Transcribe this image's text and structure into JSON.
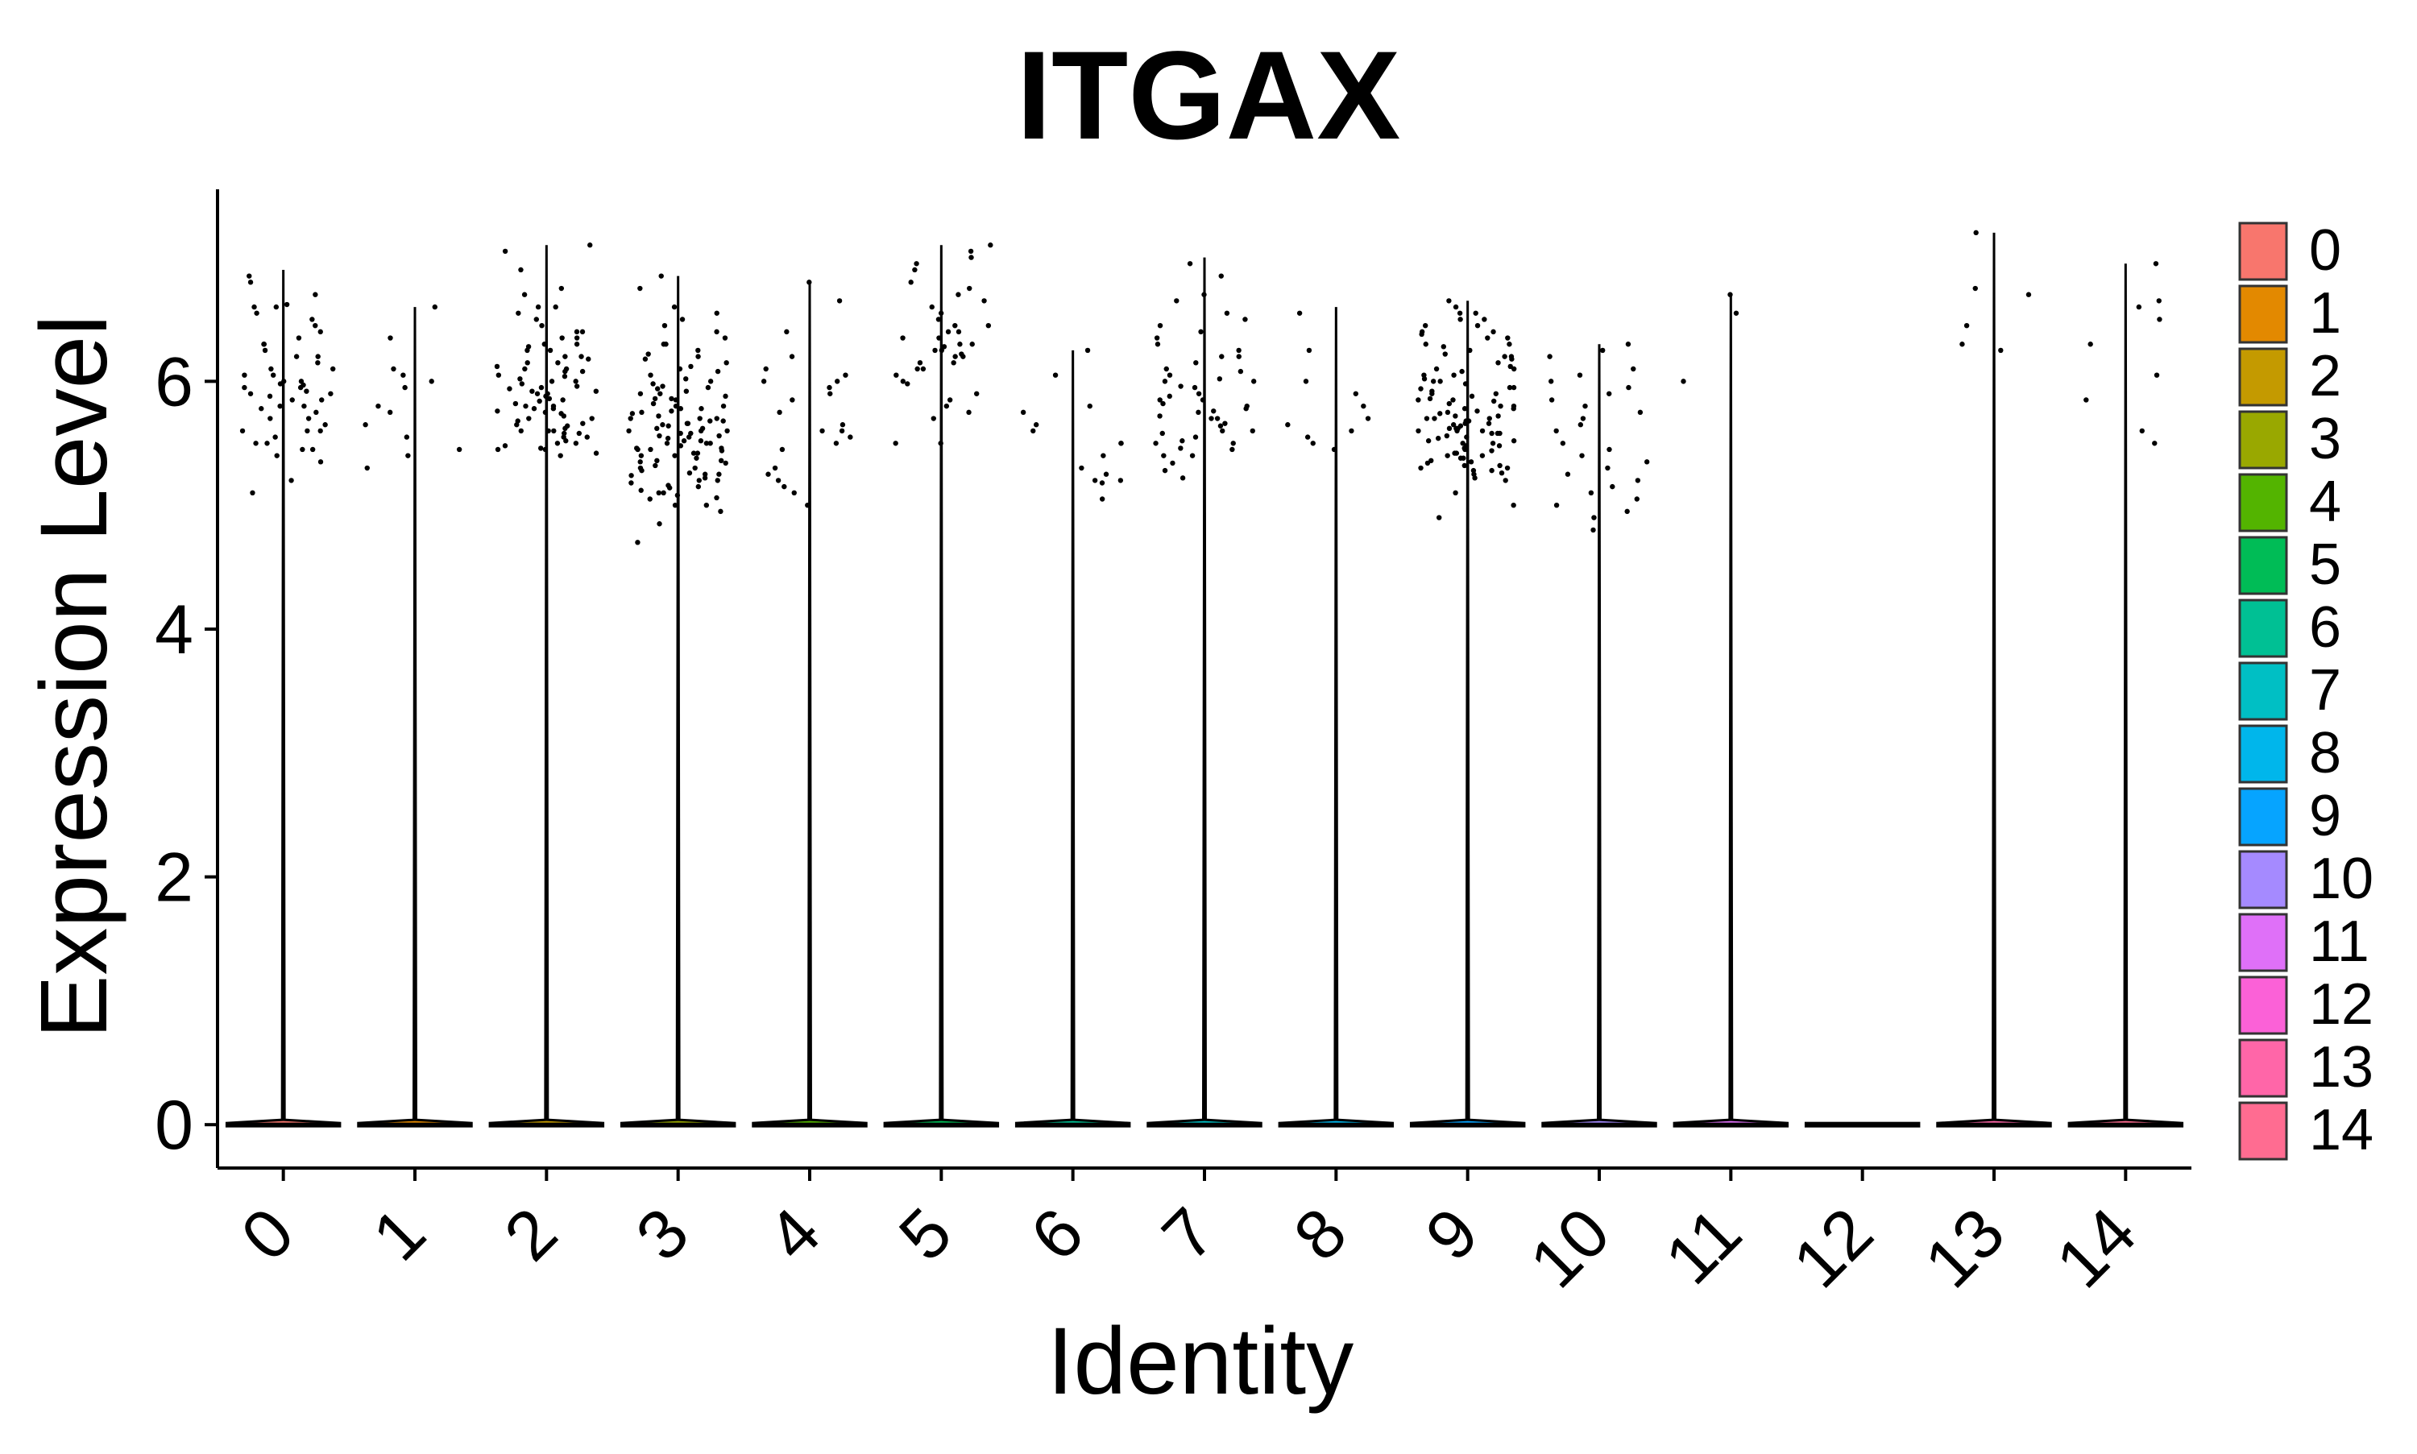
{
  "chart_data": {
    "type": "violin",
    "title": "ITGAX",
    "xlabel": "Identity",
    "ylabel": "Expression Level",
    "categories": [
      "0",
      "1",
      "2",
      "3",
      "4",
      "5",
      "6",
      "7",
      "8",
      "9",
      "10",
      "11",
      "12",
      "13",
      "14"
    ],
    "ylim": [
      -0.35,
      7.55
    ],
    "yticks": [
      0,
      2,
      4,
      6
    ],
    "max_expression": [
      6.9,
      6.6,
      7.1,
      6.85,
      6.8,
      7.1,
      6.25,
      7.0,
      6.6,
      6.65,
      6.3,
      6.7,
      0,
      7.2,
      6.95
    ],
    "expressing_cells": [
      {
        "category": "0",
        "values": [
          6.35,
          6.3,
          6.2,
          6.1,
          6.0,
          5.95,
          5.9,
          5.85,
          5.8,
          5.75,
          5.6,
          5.5,
          5.45,
          5.1,
          5.2,
          6.55,
          6.6,
          6.5,
          6.4,
          6.15,
          6.05,
          5.98,
          5.92,
          5.88,
          5.78,
          5.7,
          5.65,
          5.6,
          5.55,
          6.6,
          6.7,
          6.8,
          6.85,
          6.25,
          6.1,
          6.0,
          5.9,
          5.8,
          5.7,
          5.5,
          5.4,
          5.35,
          6.45,
          6.3,
          6.62,
          6.2,
          5.97,
          5.95,
          5.85,
          5.6,
          5.45,
          6.05
        ]
      },
      {
        "category": "1",
        "values": [
          6.6,
          6.35,
          6.05,
          5.95,
          5.55,
          5.45,
          5.4,
          5.3,
          5.75,
          5.8,
          6.0,
          5.65,
          6.1
        ]
      },
      {
        "category": "2",
        "values": [
          6.7,
          6.6,
          6.55,
          6.4,
          6.3,
          6.25,
          6.2,
          6.15,
          6.1,
          6.05,
          6.0,
          5.95,
          5.9,
          5.85,
          5.8,
          5.75,
          5.7,
          5.65,
          5.6,
          5.55,
          5.5,
          5.45,
          5.4,
          6.75,
          6.5,
          6.35,
          6.2,
          6.1,
          6.0,
          5.92,
          5.88,
          5.82,
          5.78,
          5.72,
          5.66,
          5.6,
          5.52,
          5.48,
          7.1,
          7.05,
          6.9,
          6.45,
          6.3,
          6.15,
          6.08,
          6.02,
          5.96,
          5.9,
          5.84,
          5.76,
          5.7,
          5.64,
          5.58,
          5.5,
          5.42,
          6.6,
          6.4,
          6.25,
          6.12,
          5.98,
          5.86,
          5.74,
          5.62,
          5.55,
          5.45,
          6.35,
          6.18,
          6.04,
          5.94,
          5.8,
          5.68,
          5.58,
          5.46,
          6.28,
          6.08,
          5.92,
          5.78,
          5.6
        ]
      },
      {
        "category": "3",
        "values": [
          6.85,
          6.75,
          6.5,
          6.35,
          6.2,
          6.1,
          6.0,
          5.95,
          5.9,
          5.85,
          5.8,
          5.75,
          5.7,
          5.65,
          5.6,
          5.55,
          5.5,
          5.45,
          5.4,
          5.35,
          5.3,
          5.25,
          5.2,
          5.15,
          5.1,
          5.05,
          5.0,
          4.95,
          4.85,
          4.7,
          6.4,
          6.3,
          6.15,
          6.05,
          5.98,
          5.92,
          5.88,
          5.82,
          5.78,
          5.72,
          5.68,
          5.62,
          5.58,
          5.52,
          5.48,
          5.42,
          5.38,
          5.32,
          5.28,
          5.22,
          5.18,
          5.12,
          5.08,
          6.6,
          6.45,
          6.25,
          6.12,
          6.02,
          5.96,
          5.86,
          5.76,
          5.66,
          5.56,
          5.46,
          5.36,
          5.26,
          5.16,
          5.06,
          5.86,
          5.74,
          5.64,
          5.54,
          5.44,
          5.34,
          5.24,
          5.14,
          6.3,
          6.18,
          6.08,
          5.94,
          5.8,
          5.7,
          5.6,
          5.5,
          5.4,
          5.3,
          5.2,
          5.1,
          5.0,
          5.66,
          5.58,
          5.52,
          5.46,
          5.56,
          5.62,
          5.7,
          5.42,
          5.36,
          5.5,
          5.6,
          5.68,
          5.78,
          6.55,
          6.22,
          5.9,
          5.45,
          5.25
        ]
      },
      {
        "category": "4",
        "values": [
          6.65,
          6.4,
          6.2,
          6.05,
          6.0,
          5.95,
          5.9,
          5.75,
          5.65,
          5.6,
          5.5,
          5.45,
          5.3,
          5.25,
          5.15,
          5.1,
          5.0,
          6.8,
          6.1,
          5.85,
          5.6,
          5.55,
          5.2,
          6.0
        ]
      },
      {
        "category": "5",
        "values": [
          6.95,
          6.75,
          6.55,
          6.45,
          6.4,
          6.35,
          6.3,
          6.25,
          6.2,
          6.15,
          6.1,
          6.0,
          5.85,
          5.8,
          5.75,
          5.7,
          5.5,
          7.1,
          7.05,
          7.0,
          6.9,
          6.8,
          6.7,
          6.65,
          6.6,
          6.5,
          6.45,
          6.4,
          6.35,
          6.3,
          6.28,
          6.25,
          6.22,
          6.2,
          6.15,
          6.1,
          6.05,
          5.98,
          5.9,
          5.5
        ]
      },
      {
        "category": "6",
        "values": [
          6.05,
          5.75,
          5.6,
          5.5,
          5.4,
          5.3,
          5.2,
          5.18,
          5.2,
          5.25,
          5.5,
          6.25,
          5.8,
          5.65,
          5.05
        ]
      },
      {
        "category": "7",
        "values": [
          6.95,
          6.85,
          6.7,
          6.5,
          6.4,
          6.3,
          6.2,
          6.1,
          6.05,
          6.0,
          5.95,
          5.9,
          5.85,
          5.8,
          5.75,
          5.7,
          5.6,
          5.5,
          5.45,
          5.4,
          6.65,
          6.55,
          6.45,
          6.35,
          6.25,
          6.15,
          6.08,
          6.02,
          5.96,
          5.88,
          5.82,
          5.76,
          5.7,
          5.64,
          5.58,
          5.52,
          5.46,
          5.4,
          5.34,
          5.28,
          5.22,
          6.2,
          6.0,
          5.85,
          5.78,
          5.72,
          5.66,
          5.6,
          5.55,
          5.5
        ]
      },
      {
        "category": "8",
        "values": [
          6.55,
          6.0,
          5.9,
          5.7,
          5.6,
          5.55,
          5.45,
          6.25,
          5.8,
          5.65,
          5.5
        ]
      },
      {
        "category": "9",
        "values": [
          6.65,
          6.6,
          6.55,
          6.5,
          6.45,
          6.4,
          6.35,
          6.3,
          6.25,
          6.2,
          6.15,
          6.1,
          6.05,
          6.0,
          5.95,
          5.9,
          5.85,
          5.8,
          5.75,
          5.7,
          5.65,
          5.6,
          5.55,
          5.5,
          5.45,
          5.4,
          5.35,
          5.3,
          5.25,
          5.2,
          6.4,
          6.2,
          6.05,
          5.98,
          5.92,
          5.88,
          5.82,
          5.78,
          5.72,
          5.68,
          5.62,
          5.58,
          5.52,
          5.48,
          5.42,
          5.38,
          5.32,
          5.28,
          6.3,
          6.1,
          5.95,
          5.86,
          5.76,
          5.66,
          5.56,
          5.46,
          5.36,
          5.26,
          6.22,
          6.02,
          5.9,
          5.8,
          5.7,
          5.6,
          5.5,
          5.4,
          5.3,
          4.9,
          5.0,
          5.1,
          5.74,
          5.64,
          5.54,
          5.6,
          5.7,
          5.66,
          5.58,
          6.5,
          6.35,
          6.12,
          5.84,
          5.62,
          5.44,
          5.34,
          6.45,
          6.28,
          6.08,
          5.94,
          5.78,
          5.68,
          5.58,
          5.48,
          5.38,
          5.28,
          6.55,
          6.38,
          6.18,
          6.0,
          5.85,
          5.72,
          5.62,
          5.52,
          5.42,
          5.32,
          5.22
        ]
      },
      {
        "category": "10",
        "values": [
          6.3,
          6.25,
          6.2,
          6.1,
          6.0,
          5.9,
          5.85,
          5.8,
          5.7,
          5.6,
          5.5,
          5.4,
          5.35,
          5.3,
          5.2,
          5.1,
          5.05,
          5.0,
          4.95,
          4.9,
          4.8,
          6.05,
          5.95,
          5.75,
          5.65,
          5.45,
          5.25,
          5.15
        ]
      },
      {
        "category": "11",
        "values": [
          6.7,
          6.55,
          6.0
        ]
      },
      {
        "category": "12",
        "values": []
      },
      {
        "category": "13",
        "values": [
          7.2,
          6.75,
          6.7,
          6.45,
          6.3,
          6.25
        ]
      },
      {
        "category": "14",
        "values": [
          6.95,
          6.65,
          6.6,
          6.5,
          6.3,
          6.05,
          5.85,
          5.6,
          5.5
        ]
      }
    ],
    "legend": {
      "position": "right",
      "items": [
        {
          "label": "0",
          "color": "#F8766D"
        },
        {
          "label": "1",
          "color": "#E38900"
        },
        {
          "label": "2",
          "color": "#C49A00"
        },
        {
          "label": "3",
          "color": "#99A800"
        },
        {
          "label": "4",
          "color": "#53B400"
        },
        {
          "label": "5",
          "color": "#00BC56"
        },
        {
          "label": "6",
          "color": "#00C094"
        },
        {
          "label": "7",
          "color": "#00BFC4"
        },
        {
          "label": "8",
          "color": "#00B6EB"
        },
        {
          "label": "9",
          "color": "#06A4FF"
        },
        {
          "label": "10",
          "color": "#A58AFF"
        },
        {
          "label": "11",
          "color": "#DF70F8"
        },
        {
          "label": "12",
          "color": "#FB61D7"
        },
        {
          "label": "13",
          "color": "#FF66A8"
        },
        {
          "label": "14",
          "color": "#FF6C91"
        }
      ]
    },
    "grid": false
  }
}
